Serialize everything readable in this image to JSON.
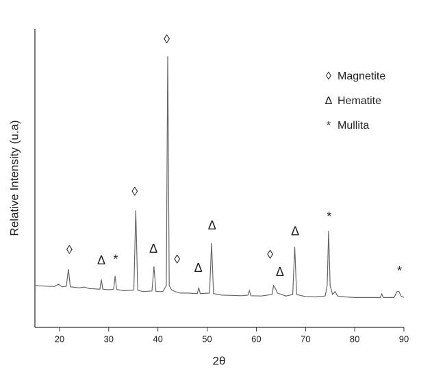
{
  "chart_data": {
    "type": "line",
    "xlabel": "2θ",
    "ylabel": "Relative Intensity (u.a)",
    "xlim": [
      15,
      90
    ],
    "xticks": [
      20,
      30,
      40,
      50,
      60,
      70,
      80,
      90
    ],
    "ylim": [
      0,
      100
    ],
    "x": [
      15,
      17,
      19,
      19.8,
      20.5,
      21.4,
      21.8,
      22.2,
      24,
      25,
      26,
      28.2,
      28.5,
      28.8,
      30,
      31,
      31.3,
      31.6,
      33,
      35.1,
      35.5,
      35.9,
      37,
      38.8,
      39.2,
      39.6,
      41,
      41.7,
      42,
      42.3,
      42.8,
      43.5,
      44.5,
      46,
      48,
      48.3,
      48.6,
      50.5,
      50.9,
      51.3,
      53,
      55,
      57,
      58.3,
      58.6,
      58.9,
      61,
      63.2,
      63.5,
      63.9,
      64.3,
      66,
      67.4,
      67.8,
      68.2,
      70,
      72,
      74,
      74.4,
      74.7,
      75,
      75.5,
      76,
      76.5,
      78,
      80,
      82,
      85.2,
      85.5,
      85.8,
      88,
      88.6,
      89,
      89.4,
      90
    ],
    "series": [
      {
        "color": "#666666",
        "values": [
          14,
          13.8,
          13.7,
          14.5,
          13.6,
          13.8,
          19.5,
          13.6,
          13.2,
          13.5,
          13,
          12.8,
          16,
          12.8,
          12.6,
          12.8,
          17.2,
          12.7,
          12.3,
          12.5,
          39.2,
          12.4,
          12,
          12.2,
          20.4,
          12,
          12,
          14,
          90.8,
          14,
          12.5,
          12,
          11.5,
          11.5,
          11.3,
          13.3,
          11.3,
          11.5,
          28.2,
          11.3,
          10.8,
          10.7,
          10.6,
          10.8,
          12.3,
          10.6,
          10.5,
          11,
          14,
          13,
          11.5,
          10.5,
          11,
          27,
          11,
          10.3,
          10.2,
          10.5,
          14,
          32.3,
          14,
          11,
          12,
          10.5,
          10.2,
          10,
          10,
          10,
          11.2,
          10,
          10,
          12,
          12,
          10.5,
          10
        ]
      }
    ],
    "annotations": [
      {
        "text": "◊",
        "x": 22,
        "y": 25.7
      },
      {
        "text": "Δ",
        "x": 28.5,
        "y": 22.2
      },
      {
        "text": "*",
        "x": 31.4,
        "y": 22.5
      },
      {
        "text": "◊",
        "x": 35.3,
        "y": 45.2
      },
      {
        "text": "Δ",
        "x": 39.1,
        "y": 26.1
      },
      {
        "text": "◊",
        "x": 41.8,
        "y": 96.3
      },
      {
        "text": "◊",
        "x": 43.9,
        "y": 22.5
      },
      {
        "text": "Δ",
        "x": 48.2,
        "y": 19.7
      },
      {
        "text": "Δ",
        "x": 51,
        "y": 33.9
      },
      {
        "text": "◊",
        "x": 62.8,
        "y": 24.1
      },
      {
        "text": "Δ",
        "x": 64.8,
        "y": 18.3
      },
      {
        "text": "Δ",
        "x": 67.9,
        "y": 31.9
      },
      {
        "text": "*",
        "x": 74.8,
        "y": 36.9
      },
      {
        "text": "*",
        "x": 89.1,
        "y": 18.6
      }
    ],
    "legend": [
      {
        "symbol": "◊",
        "label": "Magnetite"
      },
      {
        "symbol": "Δ",
        "label": "Hematite"
      },
      {
        "symbol": "*",
        "label": "Mullita"
      }
    ]
  }
}
